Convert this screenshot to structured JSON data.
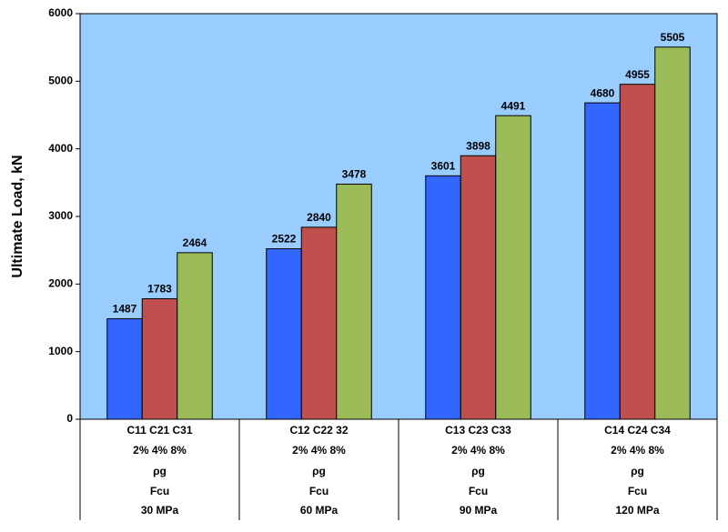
{
  "chart_data": {
    "type": "bar",
    "y_label": "Ultimate Load, kN",
    "categories": [
      [
        "C11 C21 C31",
        "2%  4%  8%",
        "ρg",
        "Fcu",
        "30 MPa"
      ],
      [
        "C12 C22 32",
        "2%  4%  8%",
        "ρg",
        "Fcu",
        "60 MPa"
      ],
      [
        "C13 C23 C33",
        "2%  4%  8%",
        "ρg",
        "Fcu",
        "90 MPa"
      ],
      [
        "C14 C24 C34",
        "2%  4%  8%",
        "ρg",
        "Fcu",
        "120 MPa"
      ]
    ],
    "series": [
      {
        "color": "#3366ff",
        "values": [
          1487,
          2522,
          3601,
          4680
        ]
      },
      {
        "color": "#c0504d",
        "values": [
          1783,
          2840,
          3898,
          4955
        ]
      },
      {
        "color": "#9bbb59",
        "values": [
          2464,
          3478,
          4491,
          5505
        ]
      }
    ],
    "ylim": [
      0,
      6000
    ],
    "yticks": [
      0,
      1000,
      2000,
      3000,
      4000,
      5000,
      6000
    ],
    "grid": false,
    "background": "#99ccff"
  }
}
